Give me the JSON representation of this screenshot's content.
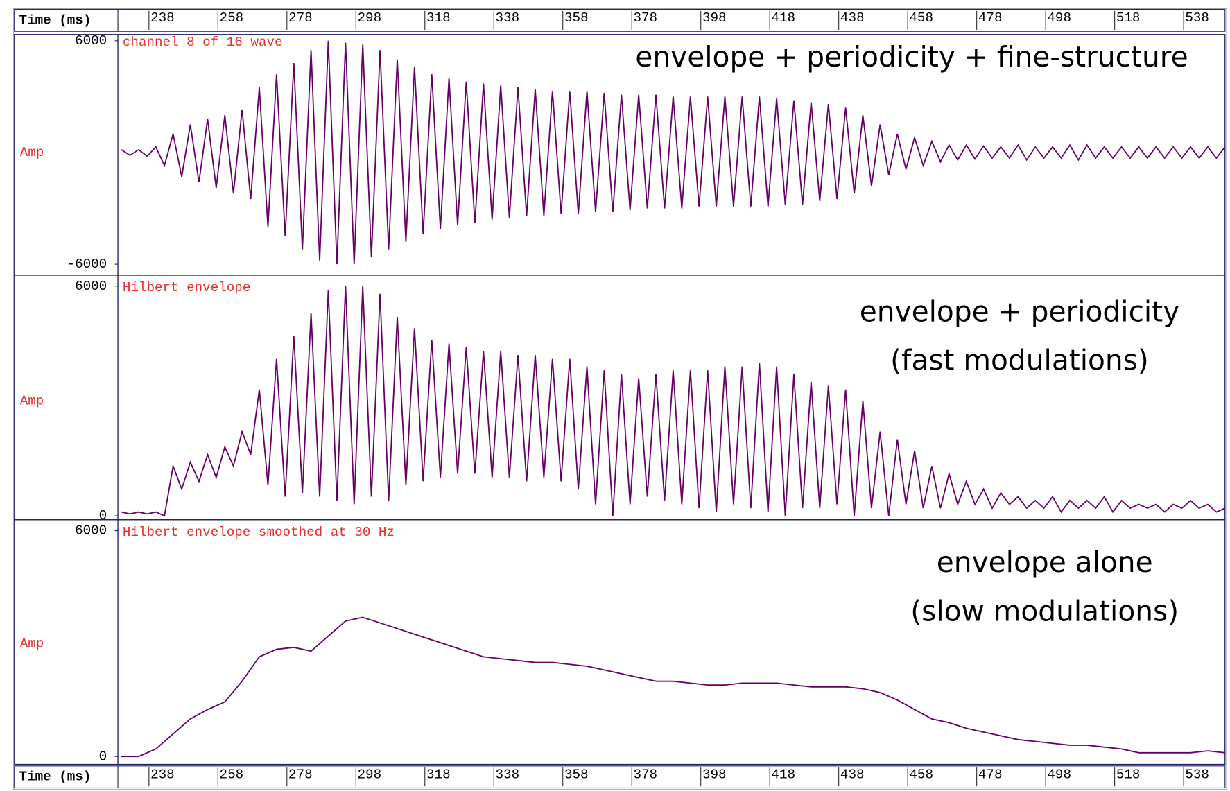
{
  "time_axis": {
    "label": "Time (ms)",
    "xlim": [
      229,
      550
    ],
    "xticks": [
      238,
      258,
      278,
      298,
      318,
      338,
      358,
      378,
      398,
      418,
      438,
      458,
      478,
      498,
      518,
      538
    ]
  },
  "chart_data": [
    {
      "type": "line",
      "title": "channel 8 of 16 wave",
      "ylabel": "Amp",
      "annotation": [
        "envelope + periodicity + fine-structure"
      ],
      "ylim": [
        -6000,
        6000
      ],
      "yticks": [
        -6000,
        6000
      ],
      "color": "#660066",
      "x": [
        230,
        232.5,
        235,
        237.5,
        240,
        242.5,
        245,
        247.5,
        250,
        252.5,
        255,
        257.5,
        260,
        262.5,
        265,
        267.5,
        270,
        272.5,
        275,
        277.5,
        280,
        282.5,
        285,
        287.5,
        290,
        292.5,
        295,
        297.5,
        300,
        302.5,
        305,
        307.5,
        310,
        312.5,
        315,
        317.5,
        320,
        322.5,
        325,
        327.5,
        330,
        332.5,
        335,
        337.5,
        340,
        342.5,
        345,
        347.5,
        350,
        352.5,
        355,
        357.5,
        360,
        362.5,
        365,
        367.5,
        370,
        372.5,
        375,
        377.5,
        380,
        382.5,
        385,
        387.5,
        390,
        392.5,
        395,
        397.5,
        400,
        402.5,
        405,
        407.5,
        410,
        412.5,
        415,
        417.5,
        420,
        422.5,
        425,
        427.5,
        430,
        432.5,
        435,
        437.5,
        440,
        442.5,
        445,
        447.5,
        450,
        452.5,
        455,
        457.5,
        460,
        462.5,
        465,
        467.5,
        470,
        472.5,
        475,
        477.5,
        480,
        482.5,
        485,
        487.5,
        490,
        492.5,
        495,
        497.5,
        500,
        502.5,
        505,
        507.5,
        510,
        512.5,
        515,
        517.5,
        520,
        522.5,
        525,
        527.5,
        530,
        532.5,
        535,
        537.5,
        540,
        542.5,
        545,
        547.5,
        550
      ],
      "values": [
        150,
        -150,
        150,
        -200,
        300,
        -700,
        1000,
        -1300,
        1500,
        -1600,
        1800,
        -1900,
        2000,
        -2200,
        2300,
        -2500,
        3500,
        -4000,
        4200,
        -4500,
        4800,
        -5200,
        5500,
        -5800,
        6000,
        -6000,
        5900,
        -6000,
        5800,
        -5600,
        5500,
        -5200,
        5000,
        -4800,
        4600,
        -4400,
        4200,
        -4100,
        4000,
        -3900,
        3800,
        -3800,
        3700,
        -3600,
        3600,
        -3500,
        3500,
        -3400,
        3400,
        -3400,
        3300,
        -3300,
        3300,
        -3300,
        3300,
        -3200,
        3200,
        -3200,
        3100,
        -3100,
        3100,
        -3000,
        3100,
        -3000,
        3000,
        -3000,
        3000,
        -2900,
        3000,
        -2900,
        3000,
        -2900,
        3000,
        -2900,
        3000,
        -2900,
        2900,
        -2800,
        2800,
        -2800,
        2700,
        -2600,
        2600,
        -2500,
        2400,
        -2200,
        2000,
        -1800,
        1500,
        -1200,
        1000,
        -900,
        800,
        -700,
        600,
        -500,
        400,
        -400,
        400,
        -350,
        350,
        -300,
        300,
        -300,
        400,
        -400,
        300,
        -300,
        300,
        -300,
        400,
        -400,
        400,
        -300,
        300,
        -300,
        300,
        -300,
        300,
        -300,
        300,
        -300,
        300,
        -300,
        300,
        -300,
        300,
        -300,
        300
      ]
    },
    {
      "type": "line",
      "title": "Hilbert envelope",
      "ylabel": "Amp",
      "annotation": [
        "envelope + periodicity",
        "(fast modulations)"
      ],
      "ylim": [
        0,
        6000
      ],
      "yticks": [
        0,
        6000
      ],
      "color": "#660066",
      "x": [
        230,
        232.5,
        235,
        237.5,
        240,
        242.5,
        245,
        247.5,
        250,
        252.5,
        255,
        257.5,
        260,
        262.5,
        265,
        267.5,
        270,
        272.5,
        275,
        277.5,
        280,
        282.5,
        285,
        287.5,
        290,
        292.5,
        295,
        297.5,
        300,
        302.5,
        305,
        307.5,
        310,
        312.5,
        315,
        317.5,
        320,
        322.5,
        325,
        327.5,
        330,
        332.5,
        335,
        337.5,
        340,
        342.5,
        345,
        347.5,
        350,
        352.5,
        355,
        357.5,
        360,
        362.5,
        365,
        367.5,
        370,
        372.5,
        375,
        377.5,
        380,
        382.5,
        385,
        387.5,
        390,
        392.5,
        395,
        397.5,
        400,
        402.5,
        405,
        407.5,
        410,
        412.5,
        415,
        417.5,
        420,
        422.5,
        425,
        427.5,
        430,
        432.5,
        435,
        437.5,
        440,
        442.5,
        445,
        447.5,
        450,
        452.5,
        455,
        457.5,
        460,
        462.5,
        465,
        467.5,
        470,
        472.5,
        475,
        477.5,
        480,
        482.5,
        485,
        487.5,
        490,
        492.5,
        495,
        497.5,
        500,
        502.5,
        505,
        507.5,
        510,
        512.5,
        515,
        517.5,
        520,
        522.5,
        525,
        527.5,
        530,
        532.5,
        535,
        537.5,
        540,
        542.5,
        545,
        547.5,
        550
      ],
      "values": [
        100,
        50,
        100,
        50,
        100,
        0,
        1300,
        700,
        1400,
        900,
        1600,
        1000,
        1800,
        1300,
        2200,
        1600,
        3300,
        800,
        4100,
        500,
        4700,
        600,
        5300,
        500,
        5900,
        400,
        6000,
        300,
        6000,
        500,
        5800,
        400,
        5200,
        800,
        4900,
        900,
        4600,
        1000,
        4500,
        1100,
        4400,
        1100,
        4300,
        1000,
        4300,
        1000,
        4200,
        900,
        4200,
        1000,
        4100,
        900,
        4100,
        700,
        3900,
        300,
        3800,
        0,
        3700,
        300,
        3600,
        500,
        3700,
        400,
        3800,
        300,
        3800,
        200,
        3800,
        100,
        3900,
        300,
        3900,
        200,
        4000,
        100,
        3900,
        0,
        3700,
        200,
        3500,
        200,
        3400,
        300,
        3300,
        0,
        3000,
        200,
        2200,
        0,
        2000,
        300,
        1700,
        200,
        1300,
        200,
        1100,
        300,
        900,
        300,
        700,
        200,
        600,
        300,
        500,
        200,
        400,
        200,
        500,
        100,
        400,
        200,
        400,
        200,
        500,
        100,
        400,
        200,
        300,
        200,
        300,
        100,
        300,
        200,
        400,
        200,
        300,
        100,
        200
      ]
    },
    {
      "type": "line",
      "title": "Hilbert envelope smoothed at 30 Hz",
      "ylabel": "Amp",
      "annotation": [
        "envelope alone",
        "(slow modulations)"
      ],
      "ylim": [
        0,
        6000
      ],
      "yticks": [
        0,
        6000
      ],
      "color": "#660066",
      "x": [
        230,
        235,
        240,
        245,
        250,
        255,
        260,
        265,
        270,
        275,
        280,
        285,
        290,
        295,
        300,
        305,
        310,
        315,
        320,
        325,
        330,
        335,
        340,
        345,
        350,
        355,
        360,
        365,
        370,
        375,
        380,
        385,
        390,
        395,
        400,
        405,
        410,
        415,
        420,
        425,
        430,
        435,
        440,
        445,
        450,
        455,
        460,
        465,
        470,
        475,
        480,
        485,
        490,
        495,
        500,
        505,
        510,
        515,
        520,
        525,
        530,
        535,
        540,
        545,
        550
      ],
      "values": [
        0,
        0,
        200,
        600,
        1000,
        1250,
        1450,
        2000,
        2650,
        2850,
        2900,
        2800,
        3200,
        3600,
        3700,
        3550,
        3400,
        3250,
        3100,
        2950,
        2800,
        2650,
        2600,
        2550,
        2500,
        2500,
        2450,
        2400,
        2300,
        2200,
        2100,
        2000,
        2000,
        1950,
        1900,
        1900,
        1950,
        1950,
        1950,
        1900,
        1850,
        1850,
        1850,
        1800,
        1700,
        1500,
        1250,
        1000,
        900,
        750,
        650,
        550,
        450,
        400,
        350,
        300,
        300,
        250,
        200,
        100,
        100,
        100,
        100,
        150,
        100
      ]
    }
  ]
}
